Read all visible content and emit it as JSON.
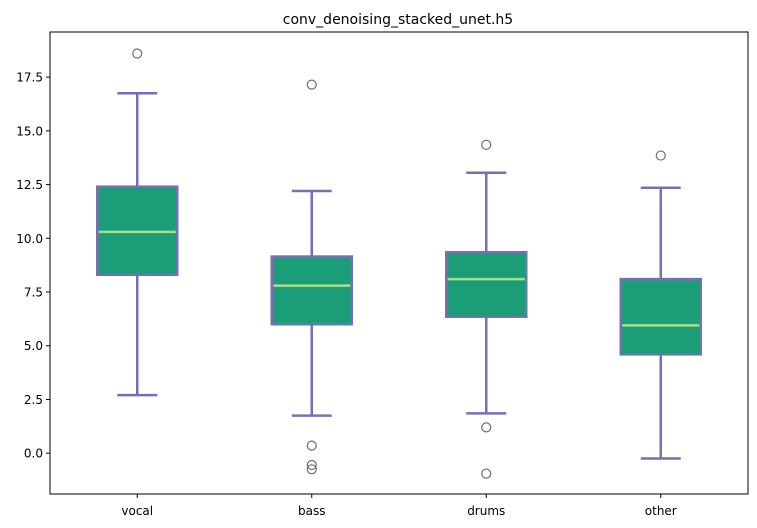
{
  "chart_data": {
    "type": "box",
    "title": "conv_denoising_stacked_unet.h5",
    "xlabel": "",
    "ylabel": "",
    "categories": [
      "vocal",
      "bass",
      "drums",
      "other"
    ],
    "ylim": [
      -1.9,
      19.6
    ],
    "yticks": [
      0.0,
      2.5,
      5.0,
      7.5,
      10.0,
      12.5,
      15.0,
      17.5
    ],
    "ytick_labels": [
      "0.0",
      "2.5",
      "5.0",
      "7.5",
      "10.0",
      "12.5",
      "15.0",
      "17.5"
    ],
    "grid": false,
    "legend": "none",
    "boxes": [
      {
        "category": "vocal",
        "whisker_low": 2.7,
        "q1": 8.3,
        "median": 10.3,
        "q3": 12.4,
        "whisker_high": 16.75,
        "outliers": [
          18.6
        ]
      },
      {
        "category": "bass",
        "whisker_low": 1.75,
        "q1": 6.0,
        "median": 7.8,
        "q3": 9.15,
        "whisker_high": 12.2,
        "outliers": [
          17.15,
          0.35,
          -0.55,
          -0.75
        ]
      },
      {
        "category": "drums",
        "whisker_low": 1.85,
        "q1": 6.35,
        "median": 8.1,
        "q3": 9.35,
        "whisker_high": 13.05,
        "outliers": [
          14.35,
          1.2,
          -0.95
        ]
      },
      {
        "category": "other",
        "whisker_low": -0.25,
        "q1": 4.6,
        "median": 5.95,
        "q3": 8.1,
        "whisker_high": 12.35,
        "outliers": [
          13.85
        ]
      }
    ],
    "colors": {
      "box_fill": "#1b9e77",
      "box_edge": "#7570b3",
      "median": "#a6e08a",
      "whisker": "#7570b3",
      "outlier_edge": "#6e6e6e"
    }
  }
}
